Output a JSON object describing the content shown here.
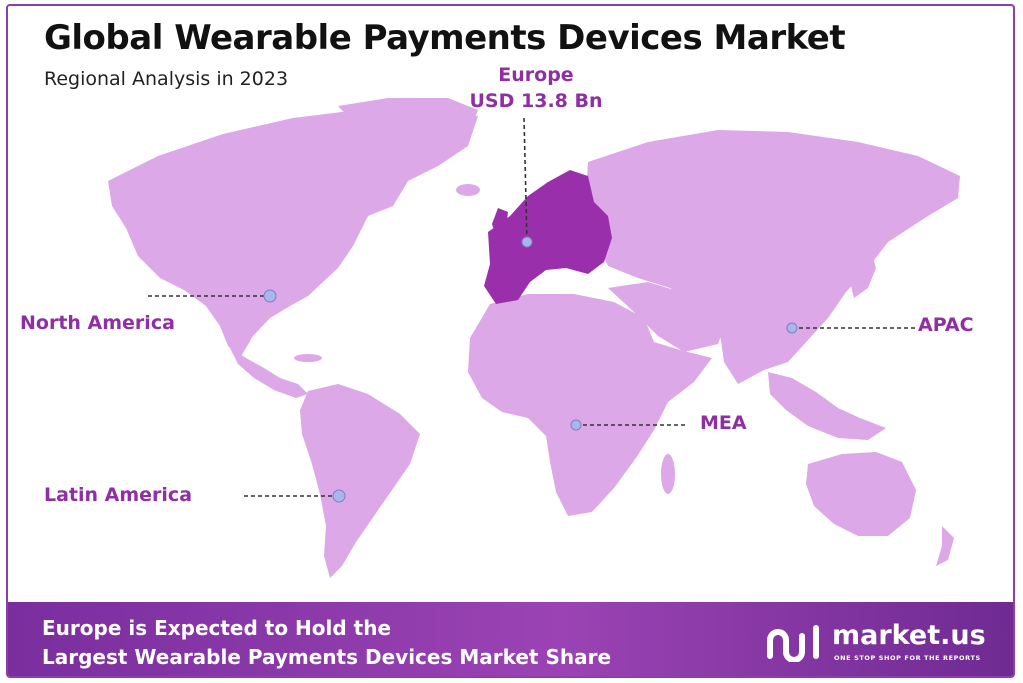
{
  "header": {
    "title": "Global Wearable Payments Devices Market",
    "subtitle": "Regional Analysis in 2023"
  },
  "regions": {
    "north_america": "North America",
    "europe": "Europe",
    "europe_value": "USD 13.8 Bn",
    "apac": "APAC",
    "mea": "MEA",
    "latin_america": "Latin America"
  },
  "highlighted_region": "Europe",
  "footer": {
    "line1": "Europe is Expected to Hold the",
    "line2": "Largest Wearable Payments Devices Market Share"
  },
  "brand": {
    "name": "market.us",
    "tagline": "ONE STOP SHOP FOR THE REPORTS",
    "icon": "market-us-logo-icon"
  },
  "colors": {
    "land": "#dca8e8",
    "highlight": "#9a2fac",
    "label": "#8e2fa4",
    "marker": "#a9b6ea",
    "footer": "#8a38aa",
    "border": "#8b3fa8"
  }
}
